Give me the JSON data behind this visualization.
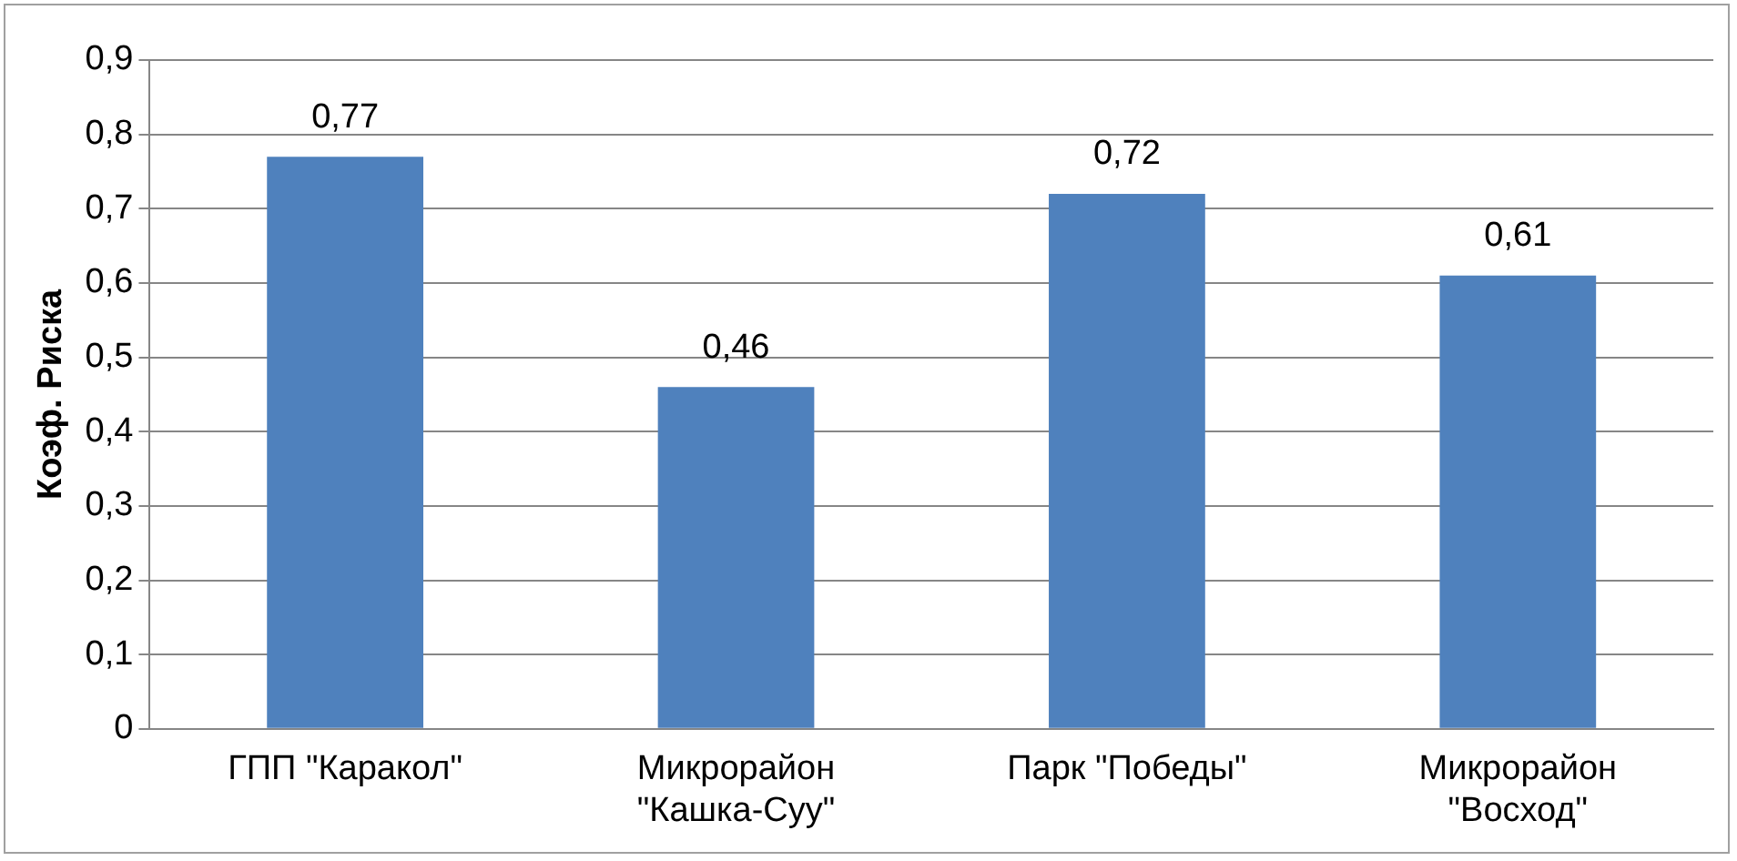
{
  "chart_data": {
    "type": "bar",
    "ylabel": "Коэф. Риска",
    "categories": [
      "ГПП \"Каракол\"",
      "Микрорайон\n\"Кашка-Суу\"",
      "Парк \"Победы\"",
      "Микрорайон\n\"Восход\""
    ],
    "values": [
      0.77,
      0.46,
      0.72,
      0.61
    ],
    "value_labels": [
      "0,77",
      "0,46",
      "0,72",
      "0,61"
    ],
    "color": "#4f81bd",
    "ylim": [
      0,
      0.9
    ],
    "yticks": [
      {
        "value": 0,
        "label": "0"
      },
      {
        "value": 0.1,
        "label": "0,1"
      },
      {
        "value": 0.2,
        "label": "0,2"
      },
      {
        "value": 0.3,
        "label": "0,3"
      },
      {
        "value": 0.4,
        "label": "0,4"
      },
      {
        "value": 0.5,
        "label": "0,5"
      },
      {
        "value": 0.6,
        "label": "0,6"
      },
      {
        "value": 0.7,
        "label": "0,7"
      },
      {
        "value": 0.8,
        "label": "0,8"
      },
      {
        "value": 0.9,
        "label": "0,9"
      }
    ],
    "grid": "y",
    "legend": false
  }
}
